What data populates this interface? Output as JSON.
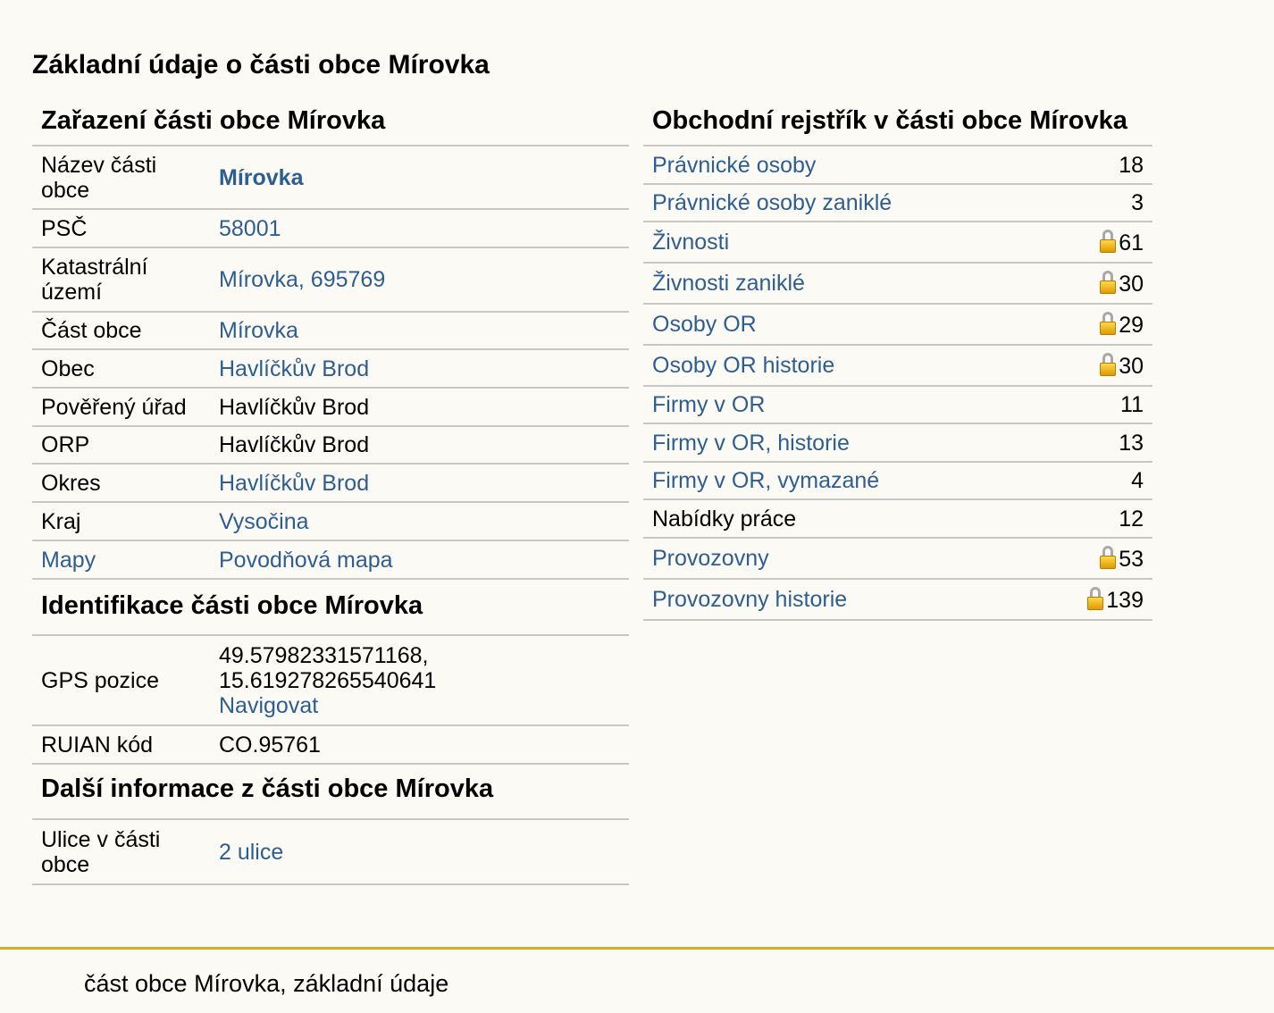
{
  "page": {
    "title": "Základní údaje o části obce Mírovka"
  },
  "zarazeni": {
    "heading": "Zařazení části obce Mírovka",
    "rows": [
      {
        "label": "Název části obce",
        "value": "Mírovka"
      },
      {
        "label": "PSČ",
        "value": "58001"
      },
      {
        "label": "Katastrální území",
        "value": "Mírovka, 695769"
      },
      {
        "label": "Část obce",
        "value": "Mírovka"
      },
      {
        "label": "Obec",
        "value": "Havlíčkův Brod"
      },
      {
        "label": "Pověřený úřad",
        "value": "Havlíčkův Brod"
      },
      {
        "label": "ORP",
        "value": "Havlíčkův Brod"
      },
      {
        "label": "Okres",
        "value": "Havlíčkův Brod"
      },
      {
        "label": "Kraj",
        "value": "Vysočina"
      },
      {
        "label": "Mapy",
        "value": "Povodňová mapa"
      }
    ]
  },
  "identifikace": {
    "heading": "Identifikace části obce Mírovka",
    "gps_label": "GPS pozice",
    "gps_lat": "49.57982331571168,",
    "gps_lon": "15.619278265540641",
    "navigate": "Navigovat",
    "ruian_label": "RUIAN kód",
    "ruian_value": "CO.95761"
  },
  "dalsi": {
    "heading": "Další informace z části obce Mírovka",
    "ulice_label": "Ulice v části obce",
    "ulice_value": "2 ulice"
  },
  "rejstrik": {
    "heading": "Obchodní rejstřík v části obce Mírovka",
    "rows": [
      {
        "label": "Právnické osoby",
        "count": "18",
        "locked": false,
        "link": true
      },
      {
        "label": "Právnické osoby zaniklé",
        "count": "3",
        "locked": false,
        "link": true
      },
      {
        "label": "Živnosti",
        "count": "61",
        "locked": true,
        "link": true
      },
      {
        "label": "Živnosti zaniklé",
        "count": "30",
        "locked": true,
        "link": true
      },
      {
        "label": "Osoby OR",
        "count": "29",
        "locked": true,
        "link": true
      },
      {
        "label": "Osoby OR historie",
        "count": "30",
        "locked": true,
        "link": true
      },
      {
        "label": "Firmy v OR",
        "count": "11",
        "locked": false,
        "link": true
      },
      {
        "label": "Firmy v OR, historie",
        "count": "13",
        "locked": false,
        "link": true
      },
      {
        "label": "Firmy v OR, vymazané",
        "count": "4",
        "locked": false,
        "link": true
      },
      {
        "label": "Nabídky práce",
        "count": "12",
        "locked": false,
        "link": false
      },
      {
        "label": "Provozovny",
        "count": "53",
        "locked": true,
        "link": true
      },
      {
        "label": "Provozovny historie",
        "count": "139",
        "locked": true,
        "link": true
      }
    ]
  },
  "footer": {
    "text": "část obce Mírovka, základní údaje"
  },
  "colors": {
    "link": "#2e5e91",
    "footer_line": "#d3ac2b",
    "background": "#fbfaf5"
  }
}
